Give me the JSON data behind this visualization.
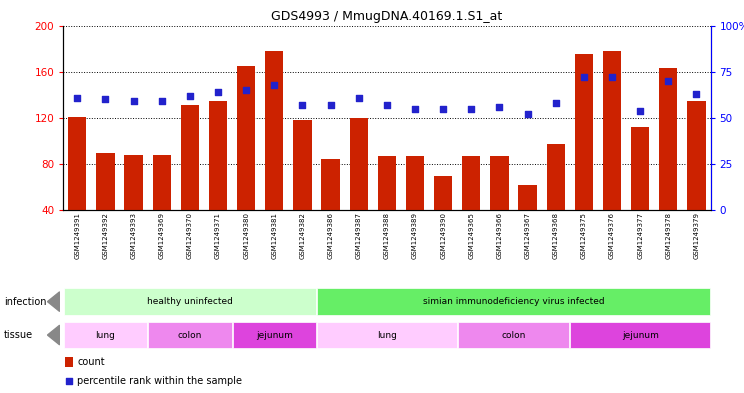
{
  "title": "GDS4993 / MmugDNA.40169.1.S1_at",
  "samples": [
    "GSM1249391",
    "GSM1249392",
    "GSM1249393",
    "GSM1249369",
    "GSM1249370",
    "GSM1249371",
    "GSM1249380",
    "GSM1249381",
    "GSM1249382",
    "GSM1249386",
    "GSM1249387",
    "GSM1249388",
    "GSM1249389",
    "GSM1249390",
    "GSM1249365",
    "GSM1249366",
    "GSM1249367",
    "GSM1249368",
    "GSM1249375",
    "GSM1249376",
    "GSM1249377",
    "GSM1249378",
    "GSM1249379"
  ],
  "counts": [
    121,
    90,
    88,
    88,
    131,
    135,
    165,
    178,
    118,
    84,
    120,
    87,
    87,
    70,
    87,
    87,
    62,
    97,
    175,
    178,
    112,
    163,
    135
  ],
  "percentiles": [
    61,
    60,
    59,
    59,
    62,
    64,
    65,
    68,
    57,
    57,
    61,
    57,
    55,
    55,
    55,
    56,
    52,
    58,
    72,
    72,
    54,
    70,
    63
  ],
  "bar_color": "#cc2200",
  "dot_color": "#2222cc",
  "ylim_left": [
    40,
    200
  ],
  "ylim_right": [
    0,
    100
  ],
  "yticks_left": [
    40,
    80,
    120,
    160,
    200
  ],
  "yticks_right": [
    0,
    25,
    50,
    75,
    100
  ],
  "infection_groups": [
    {
      "label": "healthy uninfected",
      "start": 0,
      "end": 8,
      "color": "#ccffcc"
    },
    {
      "label": "simian immunodeficiency virus infected",
      "start": 9,
      "end": 22,
      "color": "#66ee66"
    }
  ],
  "tissue_groups": [
    {
      "label": "lung",
      "start": 0,
      "end": 2,
      "color": "#ffccff"
    },
    {
      "label": "colon",
      "start": 3,
      "end": 5,
      "color": "#ee88ee"
    },
    {
      "label": "jejunum",
      "start": 6,
      "end": 8,
      "color": "#dd44dd"
    },
    {
      "label": "lung",
      "start": 9,
      "end": 13,
      "color": "#ffccff"
    },
    {
      "label": "colon",
      "start": 14,
      "end": 17,
      "color": "#ee88ee"
    },
    {
      "label": "jejunum",
      "start": 18,
      "end": 22,
      "color": "#dd44dd"
    }
  ],
  "legend_count_label": "count",
  "legend_percentile_label": "percentile rank within the sample",
  "infection_label": "infection",
  "tissue_label": "tissue",
  "plot_bg_color": "#ffffff",
  "xtick_bg_color": "#cccccc"
}
